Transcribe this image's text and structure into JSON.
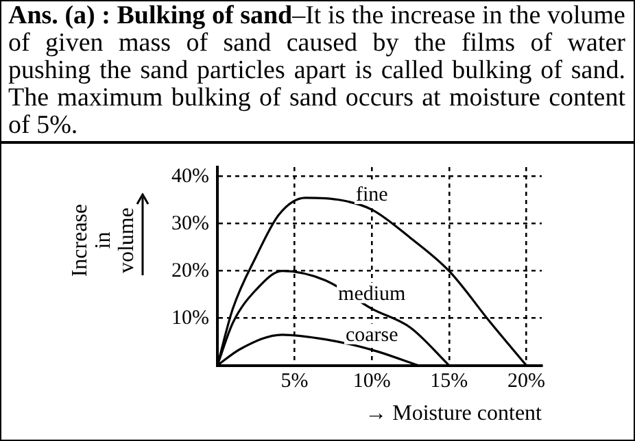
{
  "chart_data": {
    "type": "line",
    "title": "Ans. (a) : Bulking of sand",
    "subtitle": "–It is the increase in the volume of given mass of sand caused by the films of water pushing the sand particles apart is called bulking of sand. The maximum bulking of sand occurs at moisture content of 5%.",
    "xlabel": "→ Moisture content",
    "ylabel": "Increase in volume",
    "series": [
      {
        "name": "fine",
        "color": "#000000",
        "x": [
          0,
          1,
          2.5,
          4,
          5.7,
          8,
          10,
          12.5,
          15,
          17.7,
          20
        ],
        "values": [
          0,
          12,
          23,
          32,
          35.5,
          35,
          33,
          27,
          20,
          9,
          0
        ]
      },
      {
        "name": "medium",
        "color": "#000000",
        "x": [
          0,
          1,
          2.5,
          4.2,
          7,
          10,
          12.5,
          15
        ],
        "values": [
          0,
          9,
          16,
          20,
          18,
          12,
          8,
          0
        ]
      },
      {
        "name": "coarse",
        "color": "#000000",
        "x": [
          0,
          1.5,
          4.2,
          7,
          10,
          13
        ],
        "values": [
          0,
          3.5,
          6.5,
          5.5,
          3.3,
          0
        ]
      }
    ],
    "xlim": [
      0,
      21
    ],
    "xticks": [
      {
        "value": 5,
        "label": "5%"
      },
      {
        "value": 10,
        "label": "10%"
      },
      {
        "value": 15,
        "label": "15%"
      },
      {
        "value": 20,
        "label": "20%"
      }
    ],
    "ylim": [
      0,
      42
    ],
    "yticks": [
      {
        "value": 10,
        "label": "10%"
      },
      {
        "value": 20,
        "label": "20%"
      },
      {
        "value": 30,
        "label": "30%"
      },
      {
        "value": 40,
        "label": "40%"
      }
    ],
    "grid": true,
    "legend": false,
    "marker": "none",
    "line_style": "solid"
  }
}
